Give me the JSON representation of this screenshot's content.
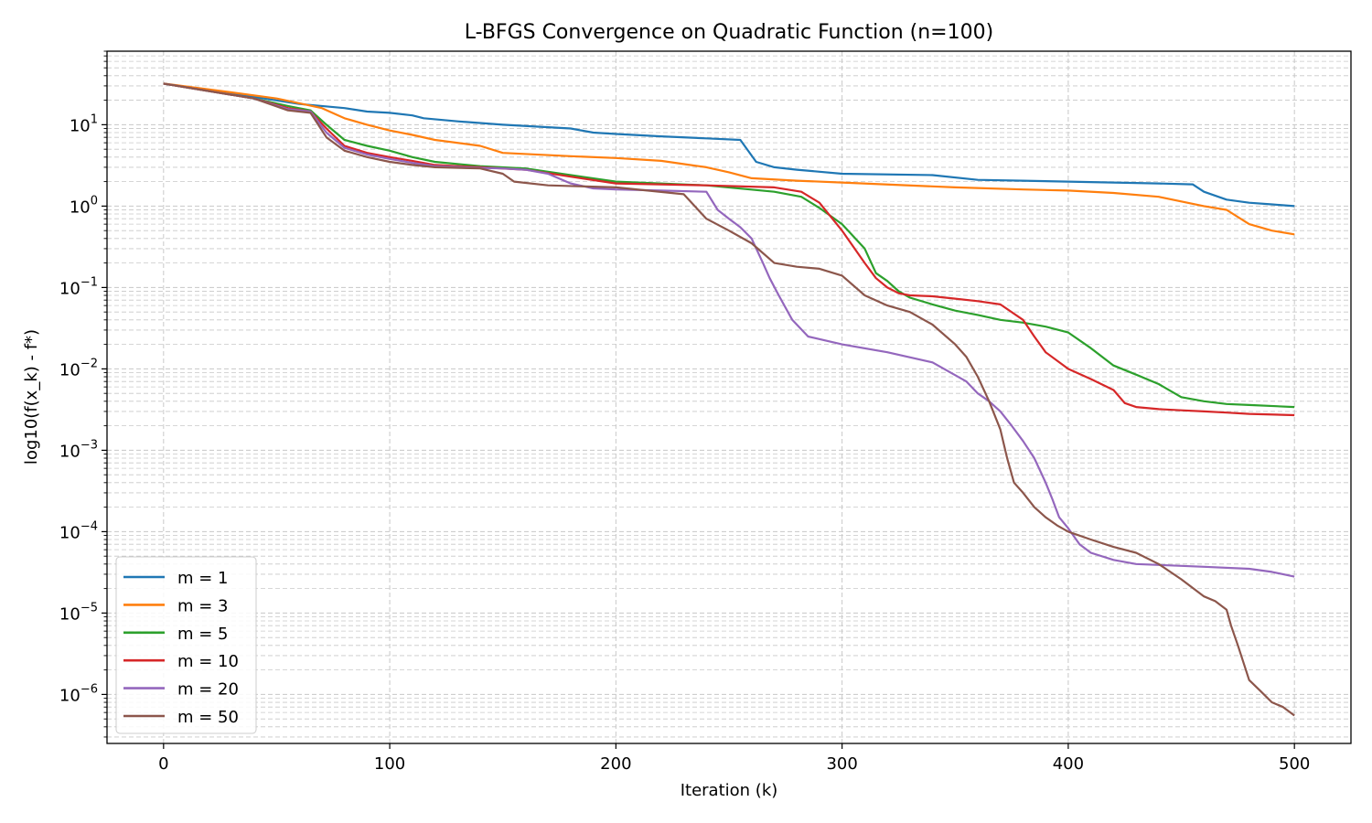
{
  "chart_data": {
    "type": "line",
    "title": "L-BFGS Convergence on Quadratic Function (n=100)",
    "xlabel": "Iteration (k)",
    "ylabel": "log10(f(x_k) - f*)",
    "xlim": [
      -25,
      525
    ],
    "ylim": [
      2.5e-07,
      80
    ],
    "yscale": "log",
    "x_ticks": [
      0,
      100,
      200,
      300,
      400,
      500
    ],
    "x_tick_labels": [
      "0",
      "100",
      "200",
      "300",
      "400",
      "500"
    ],
    "y_tick_exponents": [
      -6,
      -5,
      -4,
      -3,
      -2,
      -1,
      0,
      1
    ],
    "y_tick_labels": [
      "10",
      "10",
      "10",
      "10",
      "10",
      "10",
      "10",
      "10"
    ],
    "y_tick_superscripts": [
      "−6",
      "−5",
      "−4",
      "−3",
      "−2",
      "−1",
      "0",
      "1"
    ],
    "grid": true,
    "legend_position": "lower-left",
    "series": [
      {
        "name": "m = 1",
        "color": "#1f77b4",
        "x": [
          0,
          20,
          40,
          60,
          80,
          90,
          100,
          110,
          115,
          130,
          150,
          180,
          190,
          200,
          220,
          240,
          255,
          262,
          270,
          280,
          300,
          340,
          360,
          380,
          400,
          420,
          440,
          455,
          460,
          470,
          480,
          490,
          500
        ],
        "y": [
          32,
          26,
          22,
          18,
          16,
          14.5,
          14,
          13,
          12,
          11,
          10,
          9,
          8,
          7.7,
          7.2,
          6.8,
          6.5,
          3.5,
          3,
          2.8,
          2.5,
          2.4,
          2.1,
          2.05,
          2,
          1.95,
          1.9,
          1.85,
          1.5,
          1.2,
          1.1,
          1.05,
          1.0
        ]
      },
      {
        "name": "m = 3",
        "color": "#ff7f0e",
        "x": [
          0,
          30,
          50,
          70,
          80,
          90,
          100,
          110,
          120,
          140,
          150,
          180,
          200,
          220,
          240,
          250,
          260,
          280,
          300,
          350,
          380,
          400,
          420,
          440,
          460,
          470,
          480,
          490,
          500
        ],
        "y": [
          32,
          25,
          21,
          16,
          12,
          10,
          8.5,
          7.5,
          6.5,
          5.5,
          4.5,
          4.1,
          3.9,
          3.6,
          3,
          2.6,
          2.2,
          2.05,
          1.95,
          1.7,
          1.6,
          1.55,
          1.45,
          1.3,
          1.0,
          0.9,
          0.6,
          0.5,
          0.45
        ]
      },
      {
        "name": "m = 5",
        "color": "#2ca02c",
        "x": [
          0,
          40,
          55,
          65,
          72,
          80,
          90,
          100,
          110,
          120,
          140,
          160,
          180,
          200,
          240,
          270,
          282,
          290,
          300,
          310,
          315,
          320,
          325,
          330,
          340,
          350,
          360,
          370,
          380,
          390,
          400,
          410,
          420,
          430,
          440,
          450,
          460,
          470,
          480,
          500
        ],
        "y": [
          32,
          21,
          17,
          15,
          10,
          6.5,
          5.5,
          4.8,
          4,
          3.5,
          3.1,
          2.9,
          2.4,
          2.0,
          1.8,
          1.5,
          1.3,
          0.95,
          0.6,
          0.3,
          0.15,
          0.12,
          0.09,
          0.075,
          0.062,
          0.052,
          0.046,
          0.04,
          0.037,
          0.033,
          0.028,
          0.018,
          0.011,
          0.0085,
          0.0065,
          0.0045,
          0.004,
          0.0037,
          0.0036,
          0.0034
        ]
      },
      {
        "name": "m = 10",
        "color": "#d62728",
        "x": [
          0,
          40,
          55,
          65,
          72,
          80,
          90,
          100,
          110,
          120,
          140,
          160,
          180,
          200,
          240,
          270,
          282,
          290,
          300,
          310,
          315,
          320,
          325,
          330,
          340,
          350,
          360,
          370,
          380,
          385,
          390,
          400,
          410,
          420,
          425,
          430,
          440,
          450,
          460,
          470,
          480,
          500
        ],
        "y": [
          32,
          21,
          16,
          14.5,
          9,
          5.5,
          4.5,
          4,
          3.6,
          3.2,
          3.0,
          2.8,
          2.3,
          1.9,
          1.8,
          1.7,
          1.5,
          1.1,
          0.5,
          0.2,
          0.13,
          0.1,
          0.085,
          0.08,
          0.078,
          0.073,
          0.068,
          0.062,
          0.04,
          0.025,
          0.016,
          0.01,
          0.0075,
          0.0055,
          0.0038,
          0.0034,
          0.0032,
          0.0031,
          0.003,
          0.0029,
          0.0028,
          0.0027
        ]
      },
      {
        "name": "m = 20",
        "color": "#9467bd",
        "x": [
          0,
          40,
          55,
          65,
          72,
          80,
          90,
          100,
          110,
          120,
          140,
          150,
          160,
          170,
          180,
          190,
          200,
          220,
          240,
          245,
          250,
          255,
          260,
          265,
          268,
          272,
          278,
          285,
          300,
          320,
          340,
          355,
          360,
          365,
          370,
          375,
          380,
          385,
          390,
          393,
          396,
          400,
          405,
          410,
          420,
          430,
          440,
          460,
          480,
          490,
          500
        ],
        "y": [
          32,
          21,
          15.5,
          14.5,
          8,
          5.2,
          4.3,
          3.8,
          3.4,
          3.1,
          2.95,
          2.9,
          2.8,
          2.5,
          1.9,
          1.65,
          1.6,
          1.55,
          1.5,
          0.9,
          0.7,
          0.55,
          0.4,
          0.2,
          0.13,
          0.08,
          0.04,
          0.025,
          0.02,
          0.016,
          0.012,
          0.007,
          0.005,
          0.004,
          0.003,
          0.002,
          0.0013,
          0.0008,
          0.0004,
          0.00025,
          0.00015,
          0.00011,
          7e-05,
          5.5e-05,
          4.5e-05,
          4e-05,
          3.9e-05,
          3.7e-05,
          3.5e-05,
          3.2e-05,
          2.8e-05
        ]
      },
      {
        "name": "m = 50",
        "color": "#8c564b",
        "x": [
          0,
          40,
          55,
          65,
          72,
          80,
          90,
          100,
          110,
          120,
          140,
          150,
          155,
          170,
          200,
          230,
          240,
          250,
          260,
          270,
          280,
          290,
          300,
          310,
          320,
          330,
          340,
          350,
          355,
          360,
          365,
          370,
          373,
          376,
          380,
          385,
          390,
          395,
          400,
          410,
          420,
          430,
          440,
          450,
          460,
          465,
          470,
          472,
          475,
          480,
          485,
          490,
          495,
          500
        ],
        "y": [
          32,
          21,
          15,
          14,
          7,
          4.8,
          4,
          3.5,
          3.2,
          3.0,
          2.9,
          2.5,
          2.0,
          1.8,
          1.7,
          1.4,
          0.7,
          0.5,
          0.35,
          0.2,
          0.18,
          0.17,
          0.14,
          0.08,
          0.06,
          0.05,
          0.035,
          0.02,
          0.014,
          0.008,
          0.004,
          0.0018,
          0.0008,
          0.0004,
          0.0003,
          0.0002,
          0.00015,
          0.00012,
          0.0001,
          8e-05,
          6.5e-05,
          5.5e-05,
          4e-05,
          2.6e-05,
          1.6e-05,
          1.4e-05,
          1.1e-05,
          7e-06,
          4e-06,
          1.5e-06,
          1.1e-06,
          8e-07,
          7e-07,
          5.5e-07
        ]
      }
    ]
  }
}
